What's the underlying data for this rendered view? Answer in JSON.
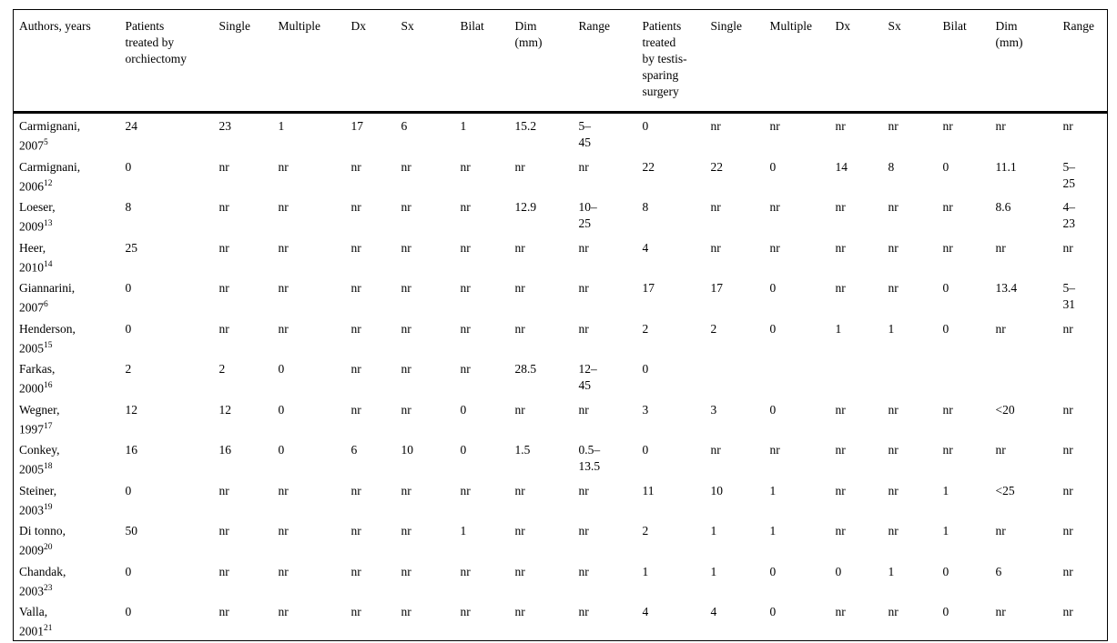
{
  "page": {
    "background_color": "#ffffff",
    "text_color": "#000000",
    "border_color": "#000000",
    "not_reported_marker": "nr"
  },
  "table": {
    "columns": [
      {
        "label": "Authors, years"
      },
      {
        "label": "Patients treated by orchiectomy"
      },
      {
        "label": "Single"
      },
      {
        "label": "Multiple"
      },
      {
        "label": "Dx"
      },
      {
        "label": "Sx"
      },
      {
        "label": "Bilat"
      },
      {
        "label": "Dim (mm)"
      },
      {
        "label": "Range"
      },
      {
        "label": "Patients treated by testis-sparing surgery"
      },
      {
        "label": "Single"
      },
      {
        "label": "Multiple"
      },
      {
        "label": "Dx"
      },
      {
        "label": "Sx"
      },
      {
        "label": "Bilat"
      },
      {
        "label": "Dim (mm)"
      },
      {
        "label": "Range"
      }
    ],
    "rows": [
      {
        "author": "Carmignani,",
        "year": "2007",
        "ref": "5",
        "values": [
          "24",
          "23",
          "1",
          "17",
          "6",
          "1",
          "15.2",
          "5–45",
          "0",
          "nr",
          "nr",
          "nr",
          "nr",
          "nr",
          "nr",
          "nr"
        ]
      },
      {
        "author": "Carmignani,",
        "year": "2006",
        "ref": "12",
        "values": [
          "0",
          "nr",
          "nr",
          "nr",
          "nr",
          "nr",
          "nr",
          "nr",
          "22",
          "22",
          "0",
          "14",
          "8",
          "0",
          "11.1",
          "5–25"
        ]
      },
      {
        "author": "Loeser,",
        "year": "2009",
        "ref": "13",
        "values": [
          "8",
          "nr",
          "nr",
          "nr",
          "nr",
          "nr",
          "12.9",
          "10–25",
          "8",
          "nr",
          "nr",
          "nr",
          "nr",
          "nr",
          "8.6",
          "4–23"
        ]
      },
      {
        "author": "Heer,",
        "year": "2010",
        "ref": "14",
        "values": [
          "25",
          "nr",
          "nr",
          "nr",
          "nr",
          "nr",
          "nr",
          "nr",
          "4",
          "nr",
          "nr",
          "nr",
          "nr",
          "nr",
          "nr",
          "nr"
        ]
      },
      {
        "author": "Giannarini,",
        "year": "2007",
        "ref": "6",
        "values": [
          "0",
          "nr",
          "nr",
          "nr",
          "nr",
          "nr",
          "nr",
          "nr",
          "17",
          "17",
          "0",
          "nr",
          "nr",
          "0",
          "13.4",
          "5–31"
        ]
      },
      {
        "author": "Henderson,",
        "year": "2005",
        "ref": "15",
        "values": [
          "0",
          "nr",
          "nr",
          "nr",
          "nr",
          "nr",
          "nr",
          "nr",
          "2",
          "2",
          "0",
          "1",
          "1",
          "0",
          "nr",
          "nr"
        ]
      },
      {
        "author": "Farkas,",
        "year": "2000",
        "ref": "16",
        "values": [
          "2",
          "2",
          "0",
          "nr",
          "nr",
          "nr",
          "28.5",
          "12–45",
          "0",
          "",
          "",
          "",
          "",
          "",
          "",
          ""
        ]
      },
      {
        "author": "Wegner,",
        "year": "1997",
        "ref": "17",
        "values": [
          "12",
          "12",
          "0",
          "nr",
          "nr",
          "0",
          "nr",
          "nr",
          "3",
          "3",
          "0",
          "nr",
          "nr",
          "nr",
          "<20",
          "nr"
        ]
      },
      {
        "author": "Conkey,",
        "year": "2005",
        "ref": "18",
        "values": [
          "16",
          "16",
          "0",
          "6",
          "10",
          "0",
          "1.5",
          "0.5–13.5",
          "0",
          "nr",
          "nr",
          "nr",
          "nr",
          "nr",
          "nr",
          "nr"
        ]
      },
      {
        "author": "Steiner,",
        "year": "2003",
        "ref": "19",
        "values": [
          "0",
          "nr",
          "nr",
          "nr",
          "nr",
          "nr",
          "nr",
          "nr",
          "11",
          "10",
          "1",
          "nr",
          "nr",
          "1",
          "<25",
          "nr"
        ]
      },
      {
        "author": "Di tonno,",
        "year": "2009",
        "ref": "20",
        "values": [
          "50",
          "nr",
          "nr",
          "nr",
          "nr",
          "1",
          "nr",
          "nr",
          "2",
          "1",
          "1",
          "nr",
          "nr",
          "1",
          "nr",
          "nr"
        ]
      },
      {
        "author": "Chandak,",
        "year": "2003",
        "ref": "23",
        "values": [
          "0",
          "nr",
          "nr",
          "nr",
          "nr",
          "nr",
          "nr",
          "nr",
          "1",
          "1",
          "0",
          "0",
          "1",
          "0",
          "6",
          "nr"
        ]
      },
      {
        "author": "Valla,",
        "year": "2001",
        "ref": "21",
        "values": [
          "0",
          "nr",
          "nr",
          "nr",
          "nr",
          "nr",
          "nr",
          "nr",
          "4",
          "4",
          "0",
          "nr",
          "nr",
          "0",
          "nr",
          "nr"
        ]
      }
    ]
  }
}
